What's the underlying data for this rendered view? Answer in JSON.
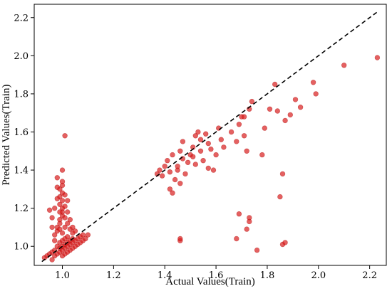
{
  "chart_data": {
    "type": "scatter",
    "title": "",
    "xlabel": "Actual Values(Train)",
    "ylabel": "Predicted Values(Train)",
    "xlim": [
      0.89,
      2.265
    ],
    "ylim": [
      0.9,
      2.27
    ],
    "xticks": [
      "1.0",
      "1.2",
      "1.4",
      "1.6",
      "1.8",
      "2.0",
      "2.2"
    ],
    "yticks": [
      "1.0",
      "1.2",
      "1.4",
      "1.6",
      "1.8",
      "2.0",
      "2.2"
    ],
    "grid": false,
    "legend": "none",
    "reference_line": {
      "style": "dashed",
      "color": "#000000",
      "from": [
        0.92,
        0.92
      ],
      "to": [
        2.23,
        2.23
      ]
    },
    "marker_color": "#d81e1e",
    "points": [
      [
        0.93,
        0.94
      ],
      [
        0.94,
        0.95
      ],
      [
        0.95,
        0.96
      ],
      [
        0.96,
        0.93
      ],
      [
        0.96,
        0.97
      ],
      [
        0.97,
        0.95
      ],
      [
        0.97,
        0.98
      ],
      [
        0.98,
        0.96
      ],
      [
        0.98,
        1.0
      ],
      [
        0.99,
        0.97
      ],
      [
        0.99,
        0.99
      ],
      [
        0.99,
        1.02
      ],
      [
        1.0,
        0.95
      ],
      [
        1.0,
        0.98
      ],
      [
        1.0,
        1.0
      ],
      [
        1.0,
        1.03
      ],
      [
        1.01,
        0.96
      ],
      [
        1.01,
        0.99
      ],
      [
        1.01,
        1.01
      ],
      [
        1.01,
        1.04
      ],
      [
        1.02,
        0.97
      ],
      [
        1.02,
        1.0
      ],
      [
        1.02,
        1.02
      ],
      [
        1.02,
        1.05
      ],
      [
        1.03,
        0.98
      ],
      [
        1.03,
        1.01
      ],
      [
        1.03,
        1.03
      ],
      [
        1.04,
        0.99
      ],
      [
        1.04,
        1.02
      ],
      [
        1.04,
        1.04
      ],
      [
        1.05,
        1.0
      ],
      [
        1.05,
        1.03
      ],
      [
        1.06,
        1.01
      ],
      [
        1.06,
        1.04
      ],
      [
        1.07,
        1.02
      ],
      [
        1.07,
        1.05
      ],
      [
        1.08,
        1.03
      ],
      [
        1.08,
        1.06
      ],
      [
        1.09,
        1.04
      ],
      [
        1.1,
        1.06
      ],
      [
        0.97,
        1.06
      ],
      [
        0.98,
        1.08
      ],
      [
        0.98,
        1.1
      ],
      [
        0.99,
        1.12
      ],
      [
        0.99,
        1.14
      ],
      [
        1.0,
        1.16
      ],
      [
        1.0,
        1.18
      ],
      [
        1.0,
        1.2
      ],
      [
        0.99,
        1.22
      ],
      [
        1.0,
        1.24
      ],
      [
        0.99,
        1.26
      ],
      [
        1.0,
        1.28
      ],
      [
        0.99,
        1.3
      ],
      [
        1.0,
        1.32
      ],
      [
        1.0,
        1.34
      ],
      [
        0.98,
        1.36
      ],
      [
        1.0,
        1.4
      ],
      [
        0.99,
        1.18
      ],
      [
        1.01,
        1.21
      ],
      [
        1.01,
        1.15
      ],
      [
        1.02,
        1.12
      ],
      [
        1.02,
        1.18
      ],
      [
        1.03,
        1.09
      ],
      [
        1.03,
        1.14
      ],
      [
        1.04,
        1.1
      ],
      [
        1.04,
        1.07
      ],
      [
        1.05,
        1.08
      ],
      [
        0.97,
        1.2
      ],
      [
        0.98,
        1.25
      ],
      [
        0.96,
        1.1
      ],
      [
        0.96,
        1.15
      ],
      [
        1.01,
        1.27
      ],
      [
        1.01,
        1.58
      ],
      [
        0.95,
        1.19
      ],
      [
        1.02,
        1.24
      ],
      [
        0.98,
        1.31
      ],
      [
        1.0,
        1.07
      ],
      [
        0.99,
        1.09
      ],
      [
        1.01,
        1.1
      ],
      [
        0.97,
        1.03
      ],
      [
        1.37,
        1.38
      ],
      [
        1.38,
        1.4
      ],
      [
        1.39,
        1.37
      ],
      [
        1.4,
        1.42
      ],
      [
        1.41,
        1.45
      ],
      [
        1.42,
        1.39
      ],
      [
        1.42,
        1.3
      ],
      [
        1.43,
        1.48
      ],
      [
        1.43,
        1.28
      ],
      [
        1.44,
        1.35
      ],
      [
        1.45,
        1.4
      ],
      [
        1.45,
        1.42
      ],
      [
        1.46,
        1.5
      ],
      [
        1.46,
        1.33
      ],
      [
        1.47,
        1.55
      ],
      [
        1.47,
        1.46
      ],
      [
        1.48,
        1.38
      ],
      [
        1.49,
        1.44
      ],
      [
        1.5,
        1.48
      ],
      [
        1.51,
        1.52
      ],
      [
        1.51,
        1.47
      ],
      [
        1.52,
        1.58
      ],
      [
        1.52,
        1.43
      ],
      [
        1.53,
        1.6
      ],
      [
        1.54,
        1.5
      ],
      [
        1.54,
        1.56
      ],
      [
        1.55,
        1.45
      ],
      [
        1.56,
        1.59
      ],
      [
        1.57,
        1.54
      ],
      [
        1.57,
        1.41
      ],
      [
        1.58,
        1.51
      ],
      [
        1.59,
        1.4
      ],
      [
        1.6,
        1.48
      ],
      [
        1.61,
        1.62
      ],
      [
        1.62,
        1.56
      ],
      [
        1.63,
        1.52
      ],
      [
        1.66,
        1.6
      ],
      [
        1.68,
        1.55
      ],
      [
        1.69,
        1.64
      ],
      [
        1.7,
        1.68
      ],
      [
        1.71,
        1.68
      ],
      [
        1.71,
        1.58
      ],
      [
        1.72,
        1.5
      ],
      [
        1.73,
        1.72
      ],
      [
        1.74,
        1.76
      ],
      [
        1.78,
        1.48
      ],
      [
        1.79,
        1.62
      ],
      [
        1.81,
        1.72
      ],
      [
        1.83,
        1.85
      ],
      [
        1.84,
        1.71
      ],
      [
        1.85,
        1.26
      ],
      [
        1.86,
        1.38
      ],
      [
        1.87,
        1.66
      ],
      [
        1.89,
        1.69
      ],
      [
        1.91,
        1.77
      ],
      [
        1.93,
        1.73
      ],
      [
        1.98,
        1.86
      ],
      [
        1.99,
        1.8
      ],
      [
        2.1,
        1.95
      ],
      [
        2.23,
        1.99
      ],
      [
        1.46,
        1.03
      ],
      [
        1.46,
        1.04
      ],
      [
        1.68,
        1.04
      ],
      [
        1.69,
        1.17
      ],
      [
        1.72,
        1.09
      ],
      [
        1.73,
        1.15
      ],
      [
        1.73,
        1.13
      ],
      [
        1.76,
        0.98
      ],
      [
        1.86,
        1.01
      ],
      [
        1.87,
        1.02
      ]
    ]
  }
}
